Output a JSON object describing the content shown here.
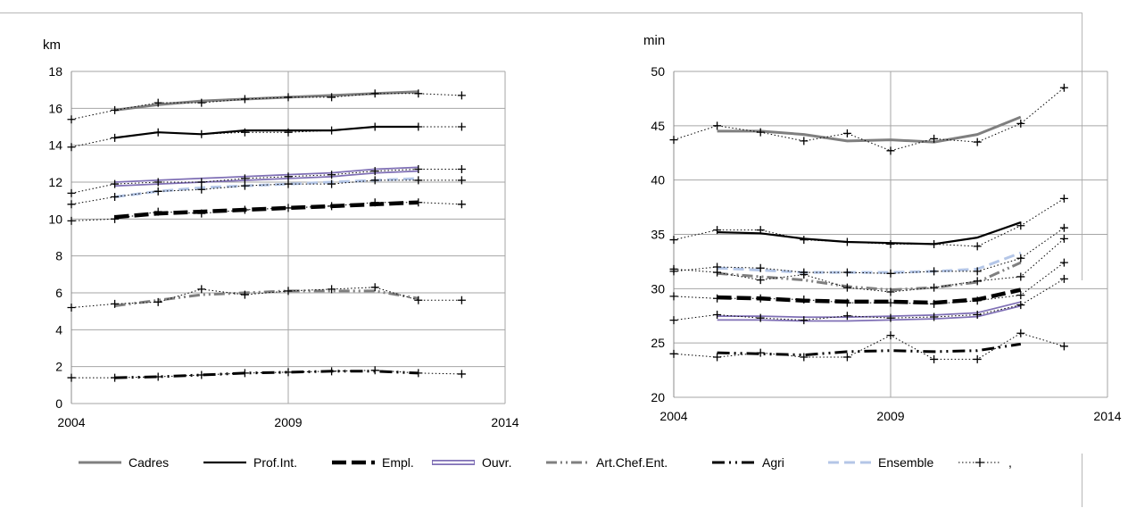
{
  "legend": [
    {
      "label": "Cadres",
      "style": "cadres"
    },
    {
      "label": "Prof.Int.",
      "style": "profint"
    },
    {
      "label": "Empl.",
      "style": "empl"
    },
    {
      "label": "Ouvr.",
      "style": "ouvr"
    },
    {
      "label": "Art.Chef.Ent.",
      "style": "art"
    },
    {
      "label": "Agri",
      "style": "agri"
    },
    {
      "label": "Ensemble",
      "style": "ensemble"
    },
    {
      "label": ",",
      "style": "cross"
    }
  ],
  "colors": {
    "cadres": "#7f7f7f",
    "profint": "#000000",
    "empl": "#000000",
    "ouvr_outer": "#7f6fb5",
    "ouvr_inner": "#ffffff",
    "art": "#7f7f7f",
    "agri": "#000000",
    "ensemble": "#b4c6e7",
    "cross": "#000000",
    "grid": "#a6a6a6"
  },
  "chart_data": [
    {
      "type": "line",
      "ylabel": "km",
      "xlim": [
        2004,
        2014
      ],
      "ylim": [
        0,
        18
      ],
      "yticks": [
        0,
        2,
        4,
        6,
        8,
        10,
        12,
        14,
        16,
        18
      ],
      "xticks": [
        2004,
        2009,
        2014
      ],
      "grid": true,
      "series": [
        {
          "name": "Cadres",
          "style": "cadres",
          "x": [
            2005,
            2006,
            2007,
            2008,
            2009,
            2010,
            2011,
            2012
          ],
          "y": [
            15.9,
            16.2,
            16.4,
            16.5,
            16.6,
            16.7,
            16.8,
            16.9
          ]
        },
        {
          "name": "Prof.Int.",
          "style": "profint",
          "x": [
            2005,
            2006,
            2007,
            2008,
            2009,
            2010,
            2011,
            2012
          ],
          "y": [
            14.4,
            14.7,
            14.6,
            14.8,
            14.8,
            14.8,
            15.0,
            15.0
          ]
        },
        {
          "name": "Empl.",
          "style": "empl",
          "x": [
            2005,
            2006,
            2007,
            2008,
            2009,
            2010,
            2011,
            2012
          ],
          "y": [
            10.1,
            10.3,
            10.4,
            10.5,
            10.6,
            10.7,
            10.8,
            10.9
          ]
        },
        {
          "name": "Ouvr.",
          "style": "ouvr",
          "x": [
            2005,
            2006,
            2007,
            2008,
            2009,
            2010,
            2011,
            2012
          ],
          "y": [
            11.9,
            12.0,
            12.1,
            12.2,
            12.3,
            12.4,
            12.6,
            12.7
          ]
        },
        {
          "name": "Art.Chef.Ent.",
          "style": "art",
          "x": [
            2005,
            2006,
            2007,
            2008,
            2009,
            2010,
            2011,
            2012
          ],
          "y": [
            5.3,
            5.6,
            5.9,
            6.0,
            6.1,
            6.1,
            6.1,
            5.7
          ]
        },
        {
          "name": "Agri",
          "style": "agri",
          "x": [
            2005,
            2006,
            2007,
            2008,
            2009,
            2010,
            2011,
            2012
          ],
          "y": [
            1.4,
            1.45,
            1.55,
            1.65,
            1.7,
            1.75,
            1.75,
            1.65
          ]
        },
        {
          "name": "Ensemble",
          "style": "ensemble",
          "x": [
            2005,
            2006,
            2007,
            2008,
            2009,
            2010,
            2011,
            2012
          ],
          "y": [
            11.2,
            11.5,
            11.7,
            11.8,
            11.9,
            12.0,
            12.1,
            12.2
          ]
        },
        {
          "name": ",",
          "style": "cross",
          "x": [
            2004,
            2005,
            2006,
            2007,
            2008,
            2009,
            2010,
            2011,
            2012,
            2013
          ],
          "y": [
            15.4,
            15.9,
            16.3,
            16.3,
            16.5,
            16.6,
            16.6,
            16.8,
            16.8,
            16.7
          ]
        },
        {
          "name": ",",
          "style": "cross",
          "x": [
            2004,
            2005,
            2006,
            2007,
            2008,
            2009,
            2010,
            2011,
            2012,
            2013
          ],
          "y": [
            13.9,
            14.4,
            14.7,
            14.6,
            14.7,
            14.7,
            14.8,
            15.0,
            15.0,
            15.0
          ]
        },
        {
          "name": ",",
          "style": "cross",
          "x": [
            2004,
            2005,
            2006,
            2007,
            2008,
            2009,
            2010,
            2011,
            2012,
            2013
          ],
          "y": [
            11.4,
            11.9,
            12.0,
            12.0,
            12.2,
            12.3,
            12.4,
            12.6,
            12.7,
            12.7
          ]
        },
        {
          "name": ",",
          "style": "cross",
          "x": [
            2004,
            2005,
            2006,
            2007,
            2008,
            2009,
            2010,
            2011,
            2012,
            2013
          ],
          "y": [
            10.8,
            11.2,
            11.5,
            11.6,
            11.8,
            11.9,
            11.9,
            12.1,
            12.1,
            12.1
          ]
        },
        {
          "name": ",",
          "style": "cross",
          "x": [
            2004,
            2005,
            2006,
            2007,
            2008,
            2009,
            2010,
            2011,
            2012,
            2013
          ],
          "y": [
            9.9,
            10.0,
            10.4,
            10.3,
            10.5,
            10.6,
            10.7,
            10.9,
            10.9,
            10.8
          ]
        },
        {
          "name": ",",
          "style": "cross",
          "x": [
            2004,
            2005,
            2006,
            2007,
            2008,
            2009,
            2010,
            2011,
            2012,
            2013
          ],
          "y": [
            5.2,
            5.4,
            5.5,
            6.2,
            5.9,
            6.1,
            6.2,
            6.3,
            5.6,
            5.6
          ]
        },
        {
          "name": ",",
          "style": "cross",
          "x": [
            2004,
            2005,
            2006,
            2007,
            2008,
            2009,
            2010,
            2011,
            2012,
            2013
          ],
          "y": [
            1.4,
            1.4,
            1.45,
            1.55,
            1.65,
            1.7,
            1.75,
            1.8,
            1.65,
            1.6
          ]
        }
      ]
    },
    {
      "type": "line",
      "ylabel": "min",
      "xlim": [
        2004,
        2014
      ],
      "ylim": [
        20,
        50
      ],
      "yticks": [
        20,
        25,
        30,
        35,
        40,
        45,
        50
      ],
      "xticks": [
        2004,
        2009,
        2014
      ],
      "grid": true,
      "series": [
        {
          "name": "Cadres",
          "style": "cadres",
          "x": [
            2005,
            2006,
            2007,
            2008,
            2009,
            2010,
            2011,
            2012
          ],
          "y": [
            44.5,
            44.5,
            44.2,
            43.6,
            43.7,
            43.5,
            44.2,
            45.8
          ]
        },
        {
          "name": "Prof.Int.",
          "style": "profint",
          "x": [
            2005,
            2006,
            2007,
            2008,
            2009,
            2010,
            2011,
            2012
          ],
          "y": [
            35.2,
            35.1,
            34.6,
            34.3,
            34.2,
            34.1,
            34.7,
            36.1
          ]
        },
        {
          "name": "Empl.",
          "style": "empl",
          "x": [
            2005,
            2006,
            2007,
            2008,
            2009,
            2010,
            2011,
            2012
          ],
          "y": [
            29.2,
            29.1,
            28.9,
            28.8,
            28.8,
            28.7,
            29.0,
            29.9
          ]
        },
        {
          "name": "Ouvr.",
          "style": "ouvr",
          "x": [
            2005,
            2006,
            2007,
            2008,
            2009,
            2010,
            2011,
            2012
          ],
          "y": [
            27.3,
            27.3,
            27.2,
            27.2,
            27.3,
            27.4,
            27.6,
            28.6
          ]
        },
        {
          "name": "Art.Chef.Ent.",
          "style": "art",
          "x": [
            2005,
            2006,
            2007,
            2008,
            2009,
            2010,
            2011,
            2012
          ],
          "y": [
            31.4,
            31.1,
            30.8,
            30.2,
            29.9,
            30.1,
            30.6,
            32.4
          ]
        },
        {
          "name": "Agri",
          "style": "agri",
          "x": [
            2005,
            2006,
            2007,
            2008,
            2009,
            2010,
            2011,
            2012
          ],
          "y": [
            24.1,
            24.0,
            23.9,
            24.2,
            24.3,
            24.2,
            24.3,
            24.9
          ]
        },
        {
          "name": "Ensemble",
          "style": "ensemble",
          "x": [
            2005,
            2006,
            2007,
            2008,
            2009,
            2010,
            2011,
            2012
          ],
          "y": [
            31.9,
            31.7,
            31.5,
            31.5,
            31.5,
            31.6,
            31.8,
            33.3
          ]
        },
        {
          "name": ",",
          "style": "cross",
          "x": [
            2004,
            2005,
            2006,
            2007,
            2008,
            2009,
            2010,
            2011,
            2012,
            2013
          ],
          "y": [
            43.7,
            45.0,
            44.4,
            43.6,
            44.3,
            42.7,
            43.8,
            43.5,
            45.2,
            48.5
          ]
        },
        {
          "name": ",",
          "style": "cross",
          "x": [
            2004,
            2005,
            2006,
            2007,
            2008,
            2009,
            2010,
            2011,
            2012,
            2013
          ],
          "y": [
            34.5,
            35.4,
            35.4,
            34.5,
            34.3,
            34.1,
            34.1,
            33.9,
            35.8,
            38.3
          ]
        },
        {
          "name": ",",
          "style": "cross",
          "x": [
            2004,
            2005,
            2006,
            2007,
            2008,
            2009,
            2010,
            2011,
            2012,
            2013
          ],
          "y": [
            31.6,
            32.0,
            31.9,
            31.5,
            31.5,
            31.4,
            31.6,
            31.6,
            32.8,
            35.6
          ]
        },
        {
          "name": ",",
          "style": "cross",
          "x": [
            2004,
            2005,
            2006,
            2007,
            2008,
            2009,
            2010,
            2011,
            2012,
            2013
          ],
          "y": [
            31.8,
            31.5,
            30.8,
            31.3,
            30.1,
            29.7,
            30.1,
            30.7,
            31.1,
            34.6
          ]
        },
        {
          "name": ",",
          "style": "cross",
          "x": [
            2004,
            2005,
            2006,
            2007,
            2008,
            2009,
            2010,
            2011,
            2012,
            2013
          ],
          "y": [
            29.3,
            29.1,
            29.1,
            29.0,
            28.7,
            28.7,
            28.6,
            28.9,
            29.4,
            32.4
          ]
        },
        {
          "name": ",",
          "style": "cross",
          "x": [
            2004,
            2005,
            2006,
            2007,
            2008,
            2009,
            2010,
            2011,
            2012,
            2013
          ],
          "y": [
            27.1,
            27.6,
            27.3,
            27.1,
            27.5,
            27.3,
            27.4,
            27.6,
            28.5,
            30.9
          ]
        },
        {
          "name": ",",
          "style": "cross",
          "x": [
            2004,
            2005,
            2006,
            2007,
            2008,
            2009,
            2010,
            2011,
            2012,
            2013
          ],
          "y": [
            24.0,
            23.7,
            24.1,
            23.7,
            23.7,
            25.7,
            23.5,
            23.5,
            25.9,
            24.7
          ]
        }
      ]
    }
  ]
}
